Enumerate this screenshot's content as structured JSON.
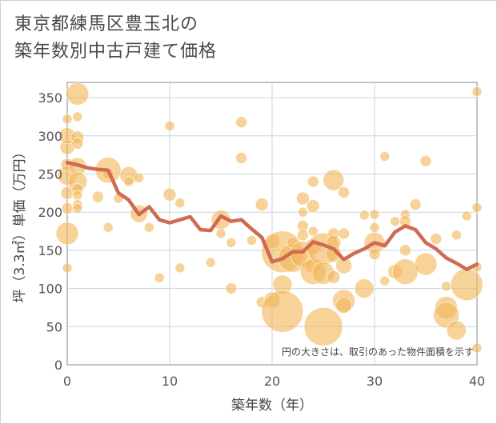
{
  "chart_data": {
    "type": "scatter",
    "title_lines": [
      "東京都練馬区豊玉北の",
      "築年数別中古戸建て価格"
    ],
    "xlabel": "築年数（年）",
    "ylabel": "坪（3.3㎡）単価（万円）",
    "xlim": [
      0,
      40
    ],
    "ylim": [
      0,
      370
    ],
    "xticks": [
      0,
      10,
      20,
      30,
      40
    ],
    "yticks": [
      0,
      50,
      100,
      150,
      200,
      250,
      300,
      350
    ],
    "grid": true,
    "annotation": "円の大きさは、取引のあった物件面積を示す",
    "colors": {
      "bubble": "#f2b65a",
      "line": "#d06a50",
      "grid": "#c7d4e2"
    },
    "bubbles": [
      {
        "x": 0,
        "y": 127,
        "s": 6
      },
      {
        "x": 0,
        "y": 172,
        "s": 14
      },
      {
        "x": 0,
        "y": 205,
        "s": 7
      },
      {
        "x": 0,
        "y": 225,
        "s": 8
      },
      {
        "x": 0,
        "y": 248,
        "s": 12
      },
      {
        "x": 0,
        "y": 262,
        "s": 8
      },
      {
        "x": 0,
        "y": 285,
        "s": 9
      },
      {
        "x": 0,
        "y": 300,
        "s": 10
      },
      {
        "x": 0,
        "y": 322,
        "s": 6
      },
      {
        "x": 1,
        "y": 355,
        "s": 14
      },
      {
        "x": 1,
        "y": 325,
        "s": 6
      },
      {
        "x": 1,
        "y": 298,
        "s": 8
      },
      {
        "x": 1,
        "y": 290,
        "s": 7
      },
      {
        "x": 1,
        "y": 260,
        "s": 11
      },
      {
        "x": 1,
        "y": 240,
        "s": 12
      },
      {
        "x": 1,
        "y": 230,
        "s": 7
      },
      {
        "x": 1,
        "y": 222,
        "s": 6
      },
      {
        "x": 1,
        "y": 210,
        "s": 6
      },
      {
        "x": 1,
        "y": 205,
        "s": 6
      },
      {
        "x": 3,
        "y": 220,
        "s": 7
      },
      {
        "x": 4,
        "y": 255,
        "s": 16
      },
      {
        "x": 4,
        "y": 180,
        "s": 6
      },
      {
        "x": 4,
        "y": 250,
        "s": 7
      },
      {
        "x": 5,
        "y": 218,
        "s": 6
      },
      {
        "x": 6,
        "y": 248,
        "s": 11
      },
      {
        "x": 6,
        "y": 240,
        "s": 6
      },
      {
        "x": 7,
        "y": 245,
        "s": 6
      },
      {
        "x": 7,
        "y": 198,
        "s": 11
      },
      {
        "x": 8,
        "y": 180,
        "s": 6
      },
      {
        "x": 9,
        "y": 114,
        "s": 6
      },
      {
        "x": 10,
        "y": 313,
        "s": 6
      },
      {
        "x": 10,
        "y": 223,
        "s": 8
      },
      {
        "x": 11,
        "y": 212,
        "s": 6
      },
      {
        "x": 11,
        "y": 127,
        "s": 6
      },
      {
        "x": 14,
        "y": 134,
        "s": 6
      },
      {
        "x": 15,
        "y": 190,
        "s": 12
      },
      {
        "x": 15,
        "y": 172,
        "s": 6
      },
      {
        "x": 16,
        "y": 160,
        "s": 6
      },
      {
        "x": 16,
        "y": 100,
        "s": 7
      },
      {
        "x": 17,
        "y": 318,
        "s": 7
      },
      {
        "x": 17,
        "y": 271,
        "s": 7
      },
      {
        "x": 18,
        "y": 163,
        "s": 6
      },
      {
        "x": 19,
        "y": 210,
        "s": 8
      },
      {
        "x": 19,
        "y": 82,
        "s": 7
      },
      {
        "x": 20,
        "y": 162,
        "s": 9
      },
      {
        "x": 20,
        "y": 85,
        "s": 10
      },
      {
        "x": 21,
        "y": 148,
        "s": 26
      },
      {
        "x": 21,
        "y": 105,
        "s": 12
      },
      {
        "x": 21,
        "y": 70,
        "s": 26
      },
      {
        "x": 22,
        "y": 140,
        "s": 18
      },
      {
        "x": 22,
        "y": 160,
        "s": 7
      },
      {
        "x": 23,
        "y": 218,
        "s": 8
      },
      {
        "x": 23,
        "y": 200,
        "s": 6
      },
      {
        "x": 23,
        "y": 182,
        "s": 7
      },
      {
        "x": 23,
        "y": 170,
        "s": 7
      },
      {
        "x": 23,
        "y": 145,
        "s": 16
      },
      {
        "x": 24,
        "y": 240,
        "s": 7
      },
      {
        "x": 24,
        "y": 208,
        "s": 8
      },
      {
        "x": 24,
        "y": 175,
        "s": 6
      },
      {
        "x": 24,
        "y": 155,
        "s": 10
      },
      {
        "x": 24,
        "y": 130,
        "s": 10
      },
      {
        "x": 24,
        "y": 122,
        "s": 16
      },
      {
        "x": 25,
        "y": 152,
        "s": 20
      },
      {
        "x": 25,
        "y": 120,
        "s": 14
      },
      {
        "x": 25,
        "y": 50,
        "s": 24
      },
      {
        "x": 26,
        "y": 242,
        "s": 13
      },
      {
        "x": 26,
        "y": 172,
        "s": 7
      },
      {
        "x": 26,
        "y": 160,
        "s": 9
      },
      {
        "x": 26,
        "y": 145,
        "s": 10
      },
      {
        "x": 26,
        "y": 115,
        "s": 8
      },
      {
        "x": 27,
        "y": 226,
        "s": 7
      },
      {
        "x": 27,
        "y": 172,
        "s": 7
      },
      {
        "x": 27,
        "y": 130,
        "s": 10
      },
      {
        "x": 27,
        "y": 84,
        "s": 14
      },
      {
        "x": 27,
        "y": 78,
        "s": 10
      },
      {
        "x": 29,
        "y": 196,
        "s": 6
      },
      {
        "x": 29,
        "y": 100,
        "s": 12
      },
      {
        "x": 30,
        "y": 197,
        "s": 6
      },
      {
        "x": 30,
        "y": 180,
        "s": 6
      },
      {
        "x": 30,
        "y": 160,
        "s": 13
      },
      {
        "x": 30,
        "y": 145,
        "s": 7
      },
      {
        "x": 31,
        "y": 273,
        "s": 6
      },
      {
        "x": 31,
        "y": 110,
        "s": 6
      },
      {
        "x": 32,
        "y": 188,
        "s": 6
      },
      {
        "x": 32,
        "y": 122,
        "s": 9
      },
      {
        "x": 33,
        "y": 197,
        "s": 6
      },
      {
        "x": 33,
        "y": 188,
        "s": 7
      },
      {
        "x": 33,
        "y": 150,
        "s": 7
      },
      {
        "x": 33,
        "y": 122,
        "s": 16
      },
      {
        "x": 34,
        "y": 210,
        "s": 7
      },
      {
        "x": 35,
        "y": 267,
        "s": 7
      },
      {
        "x": 35,
        "y": 132,
        "s": 14
      },
      {
        "x": 36,
        "y": 165,
        "s": 7
      },
      {
        "x": 37,
        "y": 103,
        "s": 6
      },
      {
        "x": 37,
        "y": 75,
        "s": 14
      },
      {
        "x": 37,
        "y": 65,
        "s": 16
      },
      {
        "x": 38,
        "y": 45,
        "s": 12
      },
      {
        "x": 38,
        "y": 170,
        "s": 6
      },
      {
        "x": 39,
        "y": 195,
        "s": 6
      },
      {
        "x": 39,
        "y": 105,
        "s": 20
      },
      {
        "x": 40,
        "y": 358,
        "s": 6
      },
      {
        "x": 40,
        "y": 206,
        "s": 6
      },
      {
        "x": 40,
        "y": 128,
        "s": 6
      },
      {
        "x": 40,
        "y": 22,
        "s": 6
      }
    ],
    "trend": {
      "x": [
        0,
        1,
        2,
        3,
        4,
        5,
        6,
        7,
        8,
        9,
        10,
        11,
        12,
        13,
        14,
        15,
        16,
        17,
        18,
        19,
        20,
        21,
        22,
        23,
        24,
        25,
        26,
        27,
        28,
        29,
        30,
        31,
        32,
        33,
        34,
        35,
        36,
        37,
        38,
        39,
        40
      ],
      "y": [
        265,
        262,
        258,
        256,
        255,
        225,
        216,
        197,
        207,
        190,
        186,
        190,
        194,
        177,
        176,
        195,
        188,
        190,
        178,
        167,
        135,
        139,
        148,
        148,
        161,
        157,
        152,
        138,
        146,
        152,
        160,
        156,
        174,
        182,
        177,
        160,
        152,
        140,
        133,
        125,
        132
      ]
    }
  }
}
